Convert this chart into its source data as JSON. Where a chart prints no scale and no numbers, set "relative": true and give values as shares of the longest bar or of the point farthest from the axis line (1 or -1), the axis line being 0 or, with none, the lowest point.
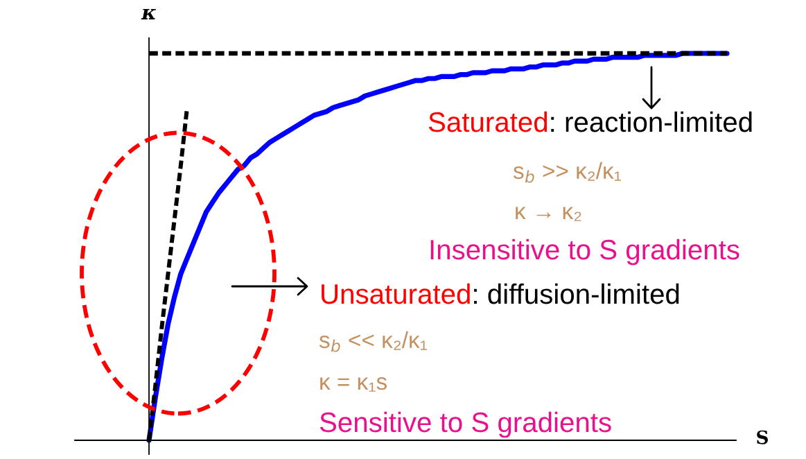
{
  "chart_data": {
    "type": "line",
    "relative": true,
    "xlabel": "S",
    "ylabel": "κ",
    "categories": [
      null,
      null,
      null,
      null,
      null,
      null,
      null,
      null,
      null,
      null,
      null,
      null,
      null,
      null,
      null,
      null,
      null,
      null,
      null,
      null,
      null,
      null,
      null,
      null,
      null,
      null,
      null,
      null,
      null,
      null,
      null,
      null,
      null,
      null,
      null,
      null,
      null,
      null,
      null,
      null,
      null,
      null,
      null,
      null,
      null,
      null,
      null,
      null,
      null,
      null,
      null,
      null,
      null,
      null,
      null,
      null,
      null,
      null,
      null,
      null,
      null,
      null,
      null,
      null,
      null,
      null,
      null,
      null,
      null,
      null,
      null,
      null,
      null,
      null,
      null,
      null,
      null,
      null,
      null,
      null,
      null,
      null,
      null,
      null,
      null,
      null,
      null,
      null,
      null,
      null,
      null,
      null
    ],
    "series": [
      {
        "color": "#0000ff",
        "line_style": "solid",
        "values": [
          0,
          0.11,
          0.21,
          0.3,
          0.37,
          0.43,
          0.47,
          0.51,
          0.55,
          0.59,
          0.615,
          0.64,
          0.66,
          0.68,
          0.7,
          0.71,
          0.73,
          0.74,
          0.755,
          0.77,
          0.78,
          0.79,
          0.8,
          0.81,
          0.82,
          0.83,
          0.84,
          0.845,
          0.85,
          0.86,
          0.865,
          0.87,
          0.875,
          0.88,
          0.89,
          0.895,
          0.9,
          0.905,
          0.91,
          0.915,
          0.92,
          0.925,
          0.93,
          0.93,
          0.935,
          0.935,
          0.94,
          0.94,
          0.94,
          0.945,
          0.945,
          0.95,
          0.95,
          0.95,
          0.955,
          0.955,
          0.955,
          0.96,
          0.96,
          0.96,
          0.965,
          0.965,
          0.97,
          0.97,
          0.97,
          0.975,
          0.975,
          0.98,
          0.98,
          0.98,
          0.985,
          0.985,
          0.985,
          0.99,
          0.99,
          0.99,
          0.99,
          0.99,
          0.995,
          0.995,
          0.995,
          0.995,
          0.995,
          0.995,
          1,
          1,
          1,
          1,
          1,
          1,
          1,
          1
        ]
      },
      {
        "type": "line",
        "color": "#000000",
        "line_style": "dashed",
        "values": [
          0,
          0.14,
          0.29,
          0.43,
          0.57,
          0.71,
          0.86,
          null,
          null,
          null,
          null,
          null,
          null,
          null,
          null,
          null,
          null,
          null,
          null,
          null,
          null,
          null,
          null,
          null,
          null,
          null,
          null,
          null,
          null,
          null,
          null,
          null,
          null,
          null,
          null,
          null,
          null,
          null,
          null,
          null,
          null,
          null,
          null,
          null,
          null,
          null,
          null,
          null,
          null,
          null,
          null,
          null,
          null,
          null,
          null,
          null,
          null,
          null,
          null,
          null,
          null,
          null,
          null,
          null,
          null,
          null,
          null,
          null,
          null,
          null,
          null,
          null,
          null,
          null,
          null,
          null,
          null,
          null,
          null,
          null,
          null,
          null,
          null,
          null,
          null,
          null,
          null,
          null,
          null,
          null,
          null,
          null
        ]
      }
    ],
    "ref_lines": [
      {
        "axis": "y",
        "value": 1,
        "color": "#000000",
        "line_style": "dashed"
      }
    ],
    "annotations": [
      "Saturated",
      ": reaction-limited",
      "s$_{b}$ >> κ₂/κ₁",
      "κ → κ₂",
      "Insensitive to S gradients",
      "Unsaturated",
      ": diffusion-limited",
      "s$_{b}$ << κ₂/κ₁",
      "κ = κ₁s",
      "Sensitive to S gradients"
    ]
  }
}
